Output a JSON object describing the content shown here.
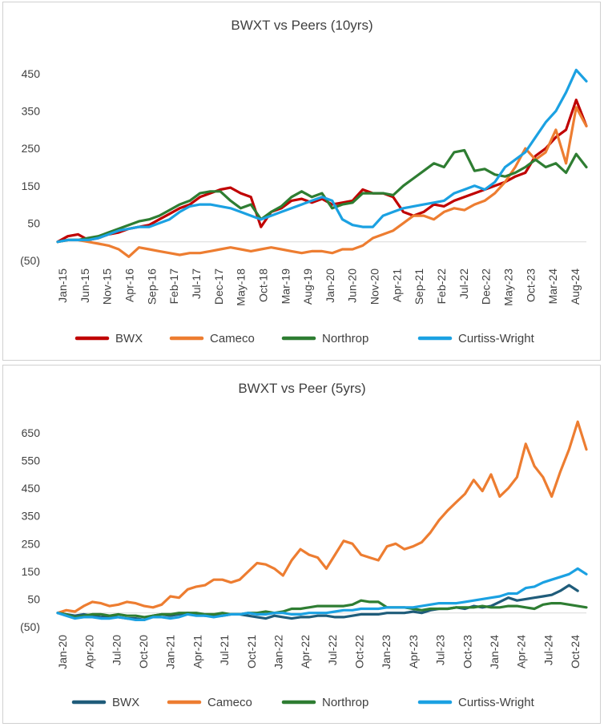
{
  "charts": [
    {
      "title": "BWXT vs Peers (10yrs)",
      "y_ticks": [
        "450",
        "350",
        "250",
        "150",
        "50",
        "(50)"
      ],
      "x_ticks": [
        "Jan-15",
        "Jun-15",
        "Nov-15",
        "Apr-16",
        "Sep-16",
        "Feb-17",
        "Jul-17",
        "Dec-17",
        "May-18",
        "Oct-18",
        "Mar-19",
        "Aug-19",
        "Jan-20",
        "Jun-20",
        "Nov-20",
        "Apr-21",
        "Sep-21",
        "Feb-22",
        "Jul-22",
        "Dec-22",
        "May-23",
        "Oct-23",
        "Mar-24",
        "Aug-24"
      ],
      "legend": [
        "BWX",
        "Cameco",
        "Northrop",
        "Curtiss-Wright"
      ]
    },
    {
      "title": "BWXT vs Peer (5yrs)",
      "y_ticks": [
        "650",
        "550",
        "450",
        "350",
        "250",
        "150",
        "50",
        "(50)"
      ],
      "x_ticks": [
        "Jan-20",
        "Apr-20",
        "Jul-20",
        "Oct-20",
        "Jan-21",
        "Apr-21",
        "Jul-21",
        "Oct-21",
        "Jan-22",
        "Apr-22",
        "Jul-22",
        "Oct-22",
        "Jan-23",
        "Apr-23",
        "Jul-23",
        "Oct-23",
        "Jan-24",
        "Apr-24",
        "Jul-24",
        "Oct-24"
      ],
      "legend": [
        "BWX",
        "Cameco",
        "Northrop",
        "Curtiss-Wright"
      ]
    }
  ],
  "chart_data": [
    {
      "type": "line",
      "title": "BWXT vs Peers (10yrs)",
      "x_start": "Jan-15",
      "x_step": "quarter",
      "ylim": [
        -50,
        450
      ],
      "y_ticks": [
        450,
        350,
        250,
        150,
        50,
        -50
      ],
      "grid": false,
      "legend": "bottom",
      "series": [
        {
          "name": "BWX",
          "color": "#c00000",
          "values": [
            0,
            15,
            20,
            5,
            10,
            20,
            25,
            35,
            40,
            45,
            60,
            75,
            90,
            100,
            120,
            130,
            140,
            145,
            130,
            120,
            40,
            80,
            90,
            110,
            115,
            105,
            115,
            100,
            105,
            110,
            140,
            130,
            130,
            120,
            80,
            70,
            80,
            100,
            95,
            110,
            120,
            130,
            140,
            150,
            160,
            175,
            185,
            230,
            250,
            280,
            300,
            380,
            310
          ]
        },
        {
          "name": "Cameco",
          "color": "#ed7d31",
          "values": [
            0,
            5,
            5,
            0,
            -5,
            -10,
            -20,
            -40,
            -15,
            -20,
            -25,
            -30,
            -35,
            -30,
            -30,
            -25,
            -20,
            -15,
            -20,
            -25,
            -20,
            -15,
            -20,
            -25,
            -30,
            -25,
            -25,
            -30,
            -20,
            -20,
            -10,
            10,
            20,
            30,
            50,
            70,
            70,
            60,
            80,
            90,
            85,
            100,
            110,
            130,
            160,
            200,
            250,
            220,
            240,
            300,
            210,
            360,
            310
          ]
        },
        {
          "name": "Northrop",
          "color": "#2e7d32",
          "values": [
            0,
            5,
            5,
            10,
            15,
            25,
            35,
            45,
            55,
            60,
            70,
            85,
            100,
            110,
            130,
            135,
            135,
            110,
            90,
            100,
            60,
            80,
            95,
            120,
            135,
            120,
            130,
            90,
            100,
            105,
            130,
            130,
            130,
            125,
            150,
            170,
            190,
            210,
            200,
            240,
            245,
            190,
            195,
            180,
            175,
            185,
            200,
            220,
            200,
            210,
            185,
            235,
            200
          ]
        },
        {
          "name": "Curtiss-Wright",
          "color": "#1ba1e2",
          "values": [
            0,
            5,
            5,
            5,
            10,
            20,
            30,
            35,
            40,
            40,
            50,
            60,
            80,
            95,
            100,
            100,
            95,
            90,
            80,
            70,
            60,
            70,
            80,
            90,
            100,
            110,
            120,
            110,
            60,
            45,
            40,
            40,
            70,
            80,
            90,
            95,
            100,
            105,
            110,
            130,
            140,
            150,
            140,
            160,
            200,
            220,
            240,
            280,
            320,
            350,
            400,
            460,
            430
          ]
        }
      ]
    },
    {
      "type": "line",
      "title": "BWXT vs Peer (5yrs)",
      "x_start": "Jan-20",
      "x_step": "month",
      "ylim": [
        -50,
        700
      ],
      "y_ticks": [
        650,
        550,
        450,
        350,
        250,
        150,
        50,
        -50
      ],
      "grid": false,
      "legend": "bottom",
      "series": [
        {
          "name": "BWX",
          "color": "#1f5c7a",
          "values": [
            0,
            -5,
            -10,
            -5,
            -10,
            -15,
            -10,
            -15,
            -20,
            -20,
            -25,
            -10,
            -5,
            -10,
            -5,
            0,
            -5,
            -10,
            -10,
            -10,
            -5,
            -5,
            -10,
            -15,
            -20,
            -10,
            -15,
            -20,
            -15,
            -15,
            -10,
            -10,
            -15,
            -15,
            -10,
            -5,
            -5,
            -5,
            0,
            0,
            0,
            5,
            0,
            10,
            15,
            15,
            20,
            15,
            25,
            20,
            25,
            40,
            55,
            45,
            50,
            55,
            60,
            65,
            80,
            100,
            80
          ]
        },
        {
          "name": "Cameco",
          "color": "#ed7d31",
          "values": [
            0,
            10,
            5,
            25,
            40,
            35,
            25,
            30,
            40,
            35,
            25,
            20,
            30,
            60,
            55,
            85,
            95,
            100,
            120,
            120,
            110,
            120,
            150,
            180,
            175,
            160,
            135,
            190,
            230,
            210,
            200,
            160,
            210,
            260,
            250,
            210,
            200,
            190,
            240,
            250,
            230,
            240,
            255,
            290,
            335,
            370,
            400,
            430,
            480,
            440,
            500,
            420,
            450,
            490,
            610,
            530,
            490,
            420,
            510,
            590,
            690,
            590
          ]
        },
        {
          "name": "Northrop",
          "color": "#2e7d32",
          "values": [
            0,
            -5,
            -15,
            -10,
            -5,
            -5,
            -10,
            -5,
            -10,
            -10,
            -15,
            -10,
            -5,
            -5,
            0,
            0,
            0,
            -5,
            -5,
            0,
            -5,
            -5,
            0,
            0,
            5,
            0,
            5,
            15,
            15,
            20,
            25,
            25,
            25,
            25,
            30,
            45,
            40,
            40,
            20,
            20,
            20,
            15,
            10,
            15,
            15,
            15,
            20,
            20,
            20,
            25,
            20,
            20,
            25,
            25,
            20,
            15,
            30,
            35,
            35,
            30,
            25,
            20
          ]
        },
        {
          "name": "Curtiss-Wright",
          "color": "#1ba1e2",
          "values": [
            0,
            -10,
            -20,
            -15,
            -15,
            -20,
            -20,
            -15,
            -20,
            -25,
            -25,
            -15,
            -15,
            -20,
            -15,
            -5,
            -10,
            -10,
            -15,
            -10,
            -5,
            -5,
            0,
            -5,
            -5,
            0,
            0,
            -5,
            -5,
            0,
            0,
            0,
            5,
            10,
            10,
            15,
            15,
            15,
            20,
            20,
            20,
            20,
            25,
            30,
            35,
            35,
            35,
            40,
            45,
            50,
            55,
            60,
            70,
            70,
            90,
            95,
            110,
            120,
            130,
            140,
            160,
            140
          ]
        }
      ]
    }
  ]
}
